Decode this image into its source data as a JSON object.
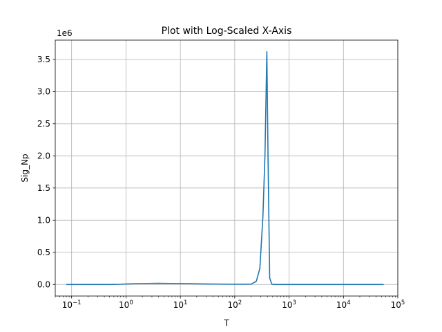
{
  "chart_data": {
    "type": "line",
    "title": "Plot with Log-Scaled X-Axis",
    "xlabel": "T",
    "ylabel": "Sig_Np",
    "x_scale": "log",
    "xlim": [
      0.05,
      100000
    ],
    "ylim": [
      -180000,
      3800000
    ],
    "y_offset_label": "1e6",
    "grid": true,
    "line_color": "#1f77b4",
    "x_ticks": [
      {
        "value": 0.1,
        "base": "10",
        "exp": "−1"
      },
      {
        "value": 1,
        "base": "10",
        "exp": "0"
      },
      {
        "value": 10,
        "base": "10",
        "exp": "1"
      },
      {
        "value": 100,
        "base": "10",
        "exp": "2"
      },
      {
        "value": 1000,
        "base": "10",
        "exp": "3"
      },
      {
        "value": 10000,
        "base": "10",
        "exp": "4"
      },
      {
        "value": 100000,
        "base": "10",
        "exp": "5"
      }
    ],
    "y_ticks": [
      {
        "value": 0,
        "label": "0.0"
      },
      {
        "value": 500000,
        "label": "0.5"
      },
      {
        "value": 1000000,
        "label": "1.0"
      },
      {
        "value": 1500000,
        "label": "1.5"
      },
      {
        "value": 2000000,
        "label": "2.0"
      },
      {
        "value": 2500000,
        "label": "2.5"
      },
      {
        "value": 3000000,
        "label": "3.0"
      },
      {
        "value": 3500000,
        "label": "3.5"
      }
    ],
    "series": [
      {
        "x": [
          0.08,
          0.2,
          0.5,
          0.8,
          1.0,
          2,
          4,
          10,
          30,
          100,
          200,
          250,
          290,
          330,
          360,
          390,
          410,
          440,
          480,
          550,
          1000,
          5000,
          20000,
          55000
        ],
        "y": [
          0,
          0,
          0,
          3000,
          8000,
          15000,
          18000,
          14000,
          8000,
          3000,
          5000,
          50000,
          250000,
          1050000,
          2000000,
          3620000,
          2000000,
          100000,
          5000,
          0,
          0,
          0,
          0,
          0
        ]
      }
    ]
  }
}
